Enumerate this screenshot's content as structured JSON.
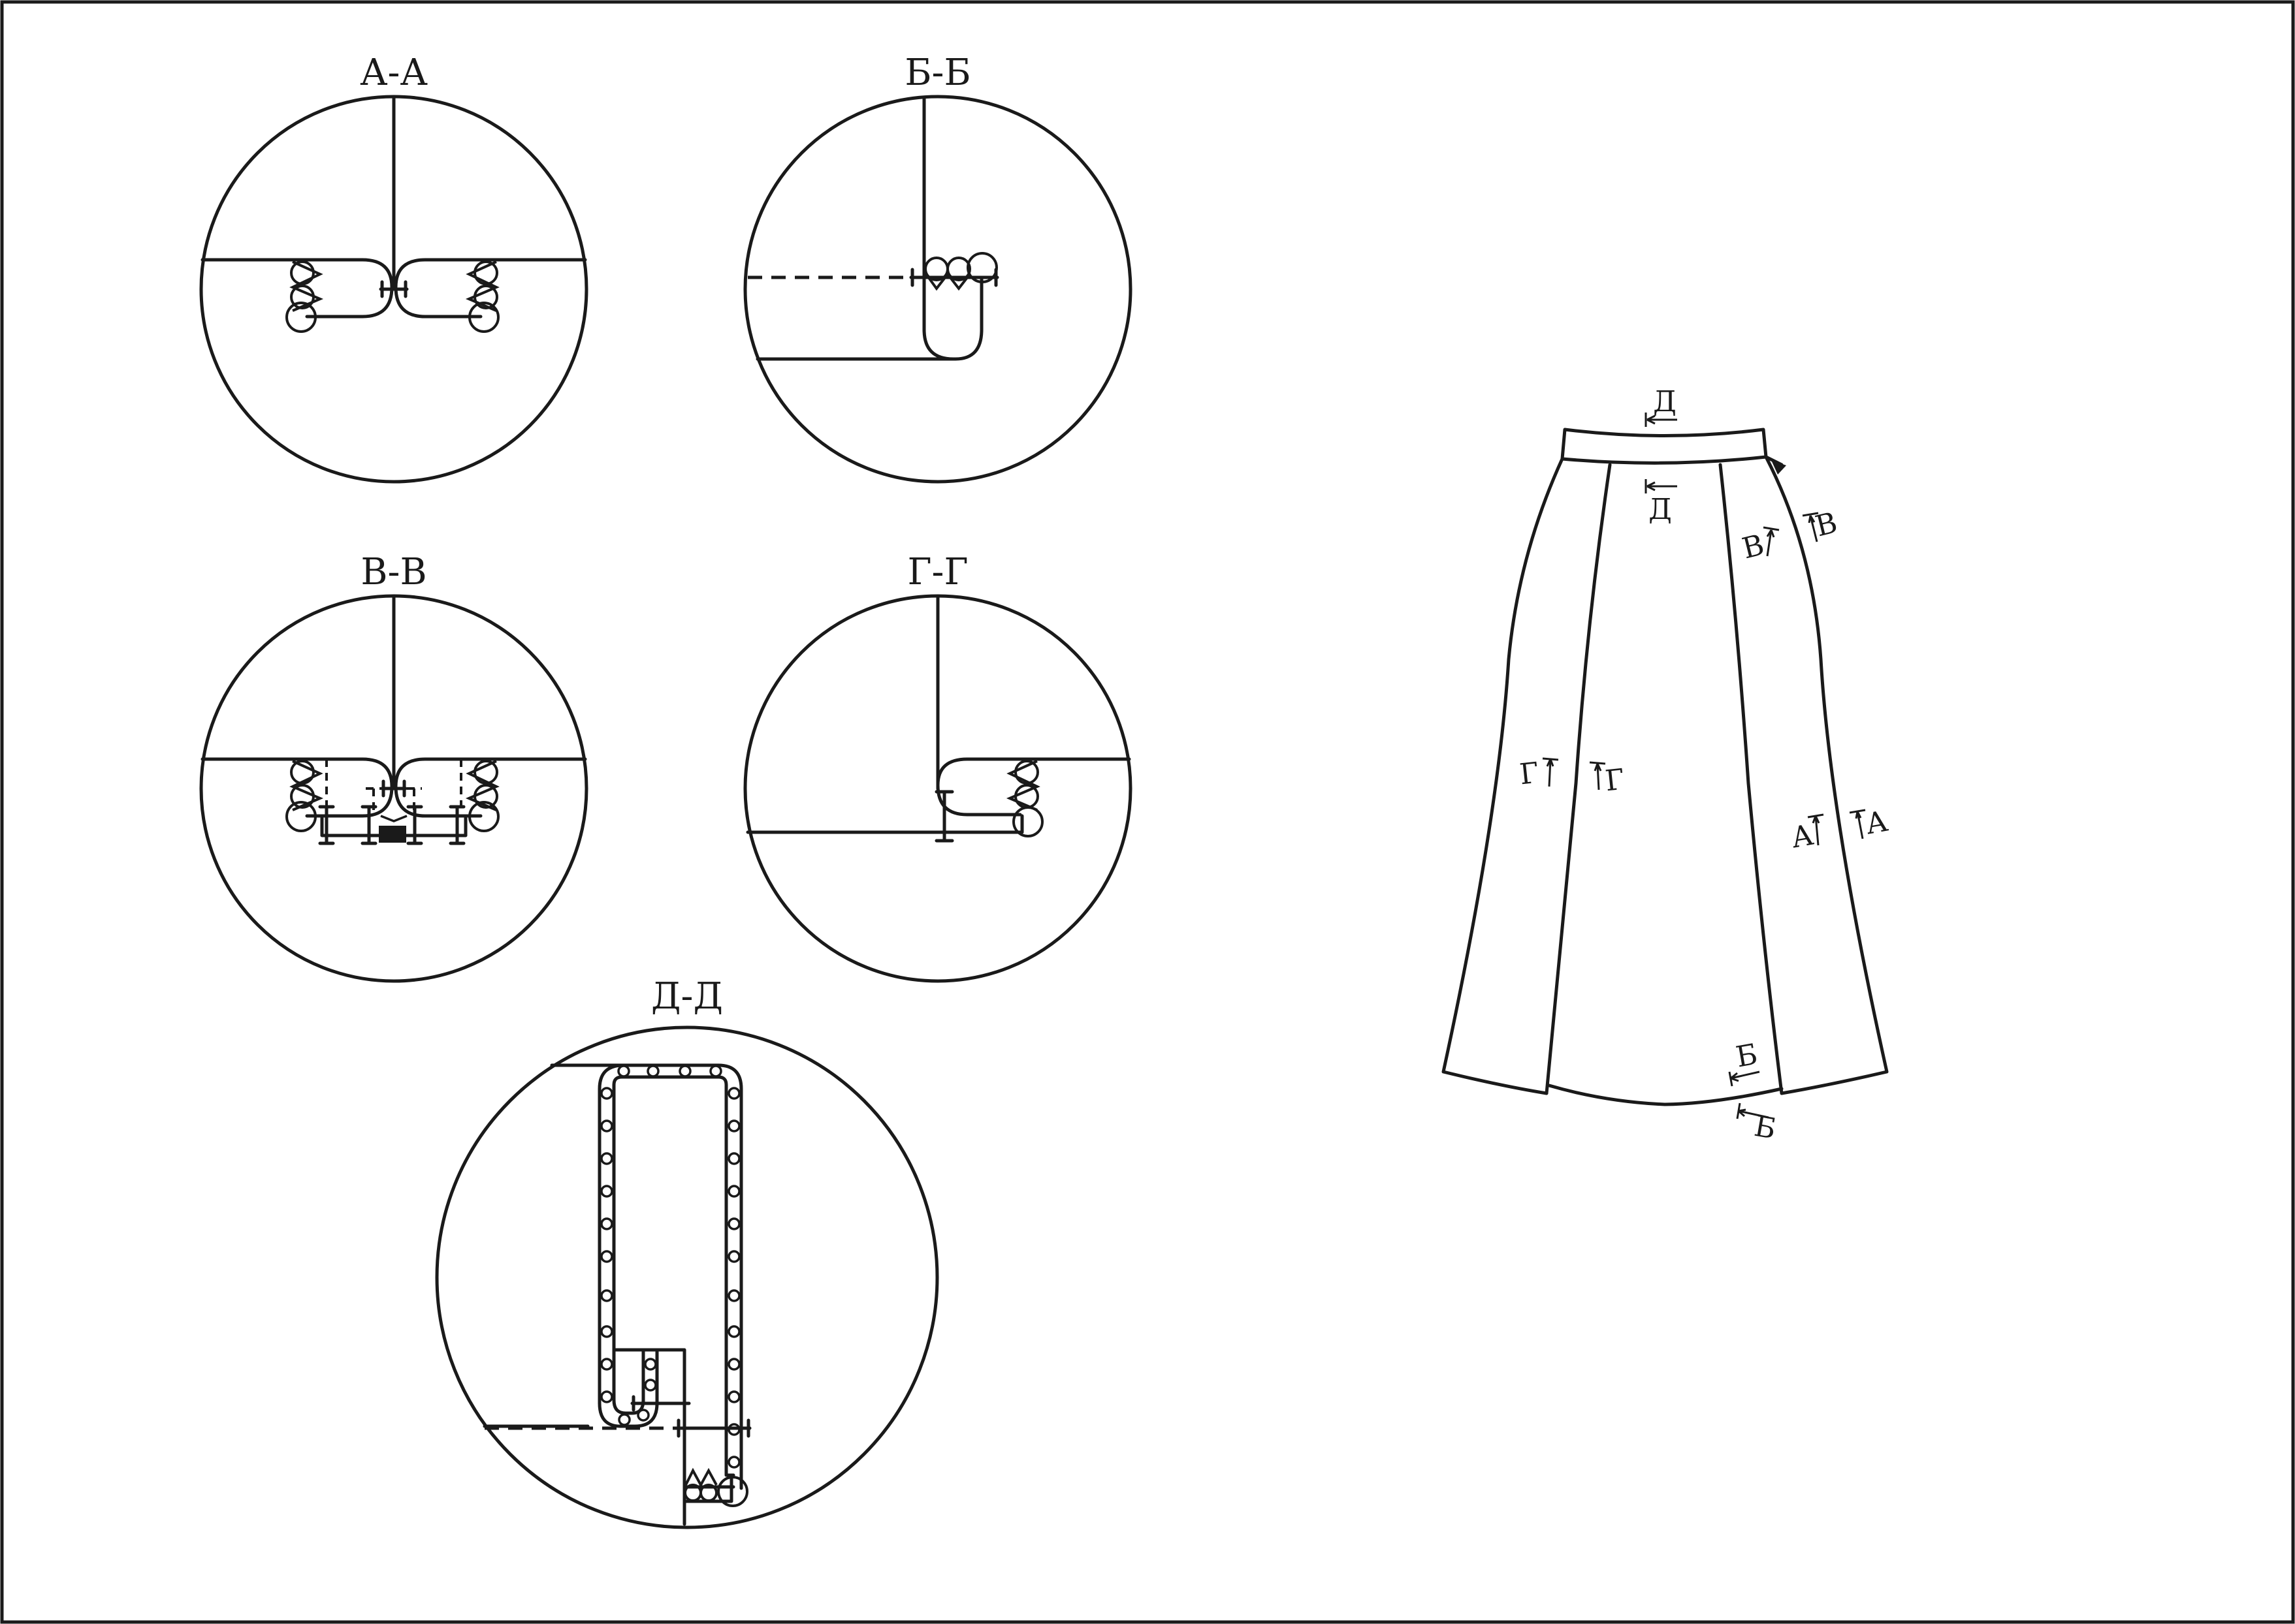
{
  "sections": {
    "aa": "А-А",
    "bb": "Б-Б",
    "vv": "В-В",
    "gg": "Г-Г",
    "dd": "Д-Д"
  },
  "skirt_marks": {
    "d_top": "Д",
    "d_bottom": "Д",
    "v_left": "В",
    "v_right": "В",
    "g_left": "Г",
    "g_right": "Г",
    "a_left": "А",
    "a_right": "А",
    "b_upper": "Б",
    "b_lower": "Б"
  }
}
